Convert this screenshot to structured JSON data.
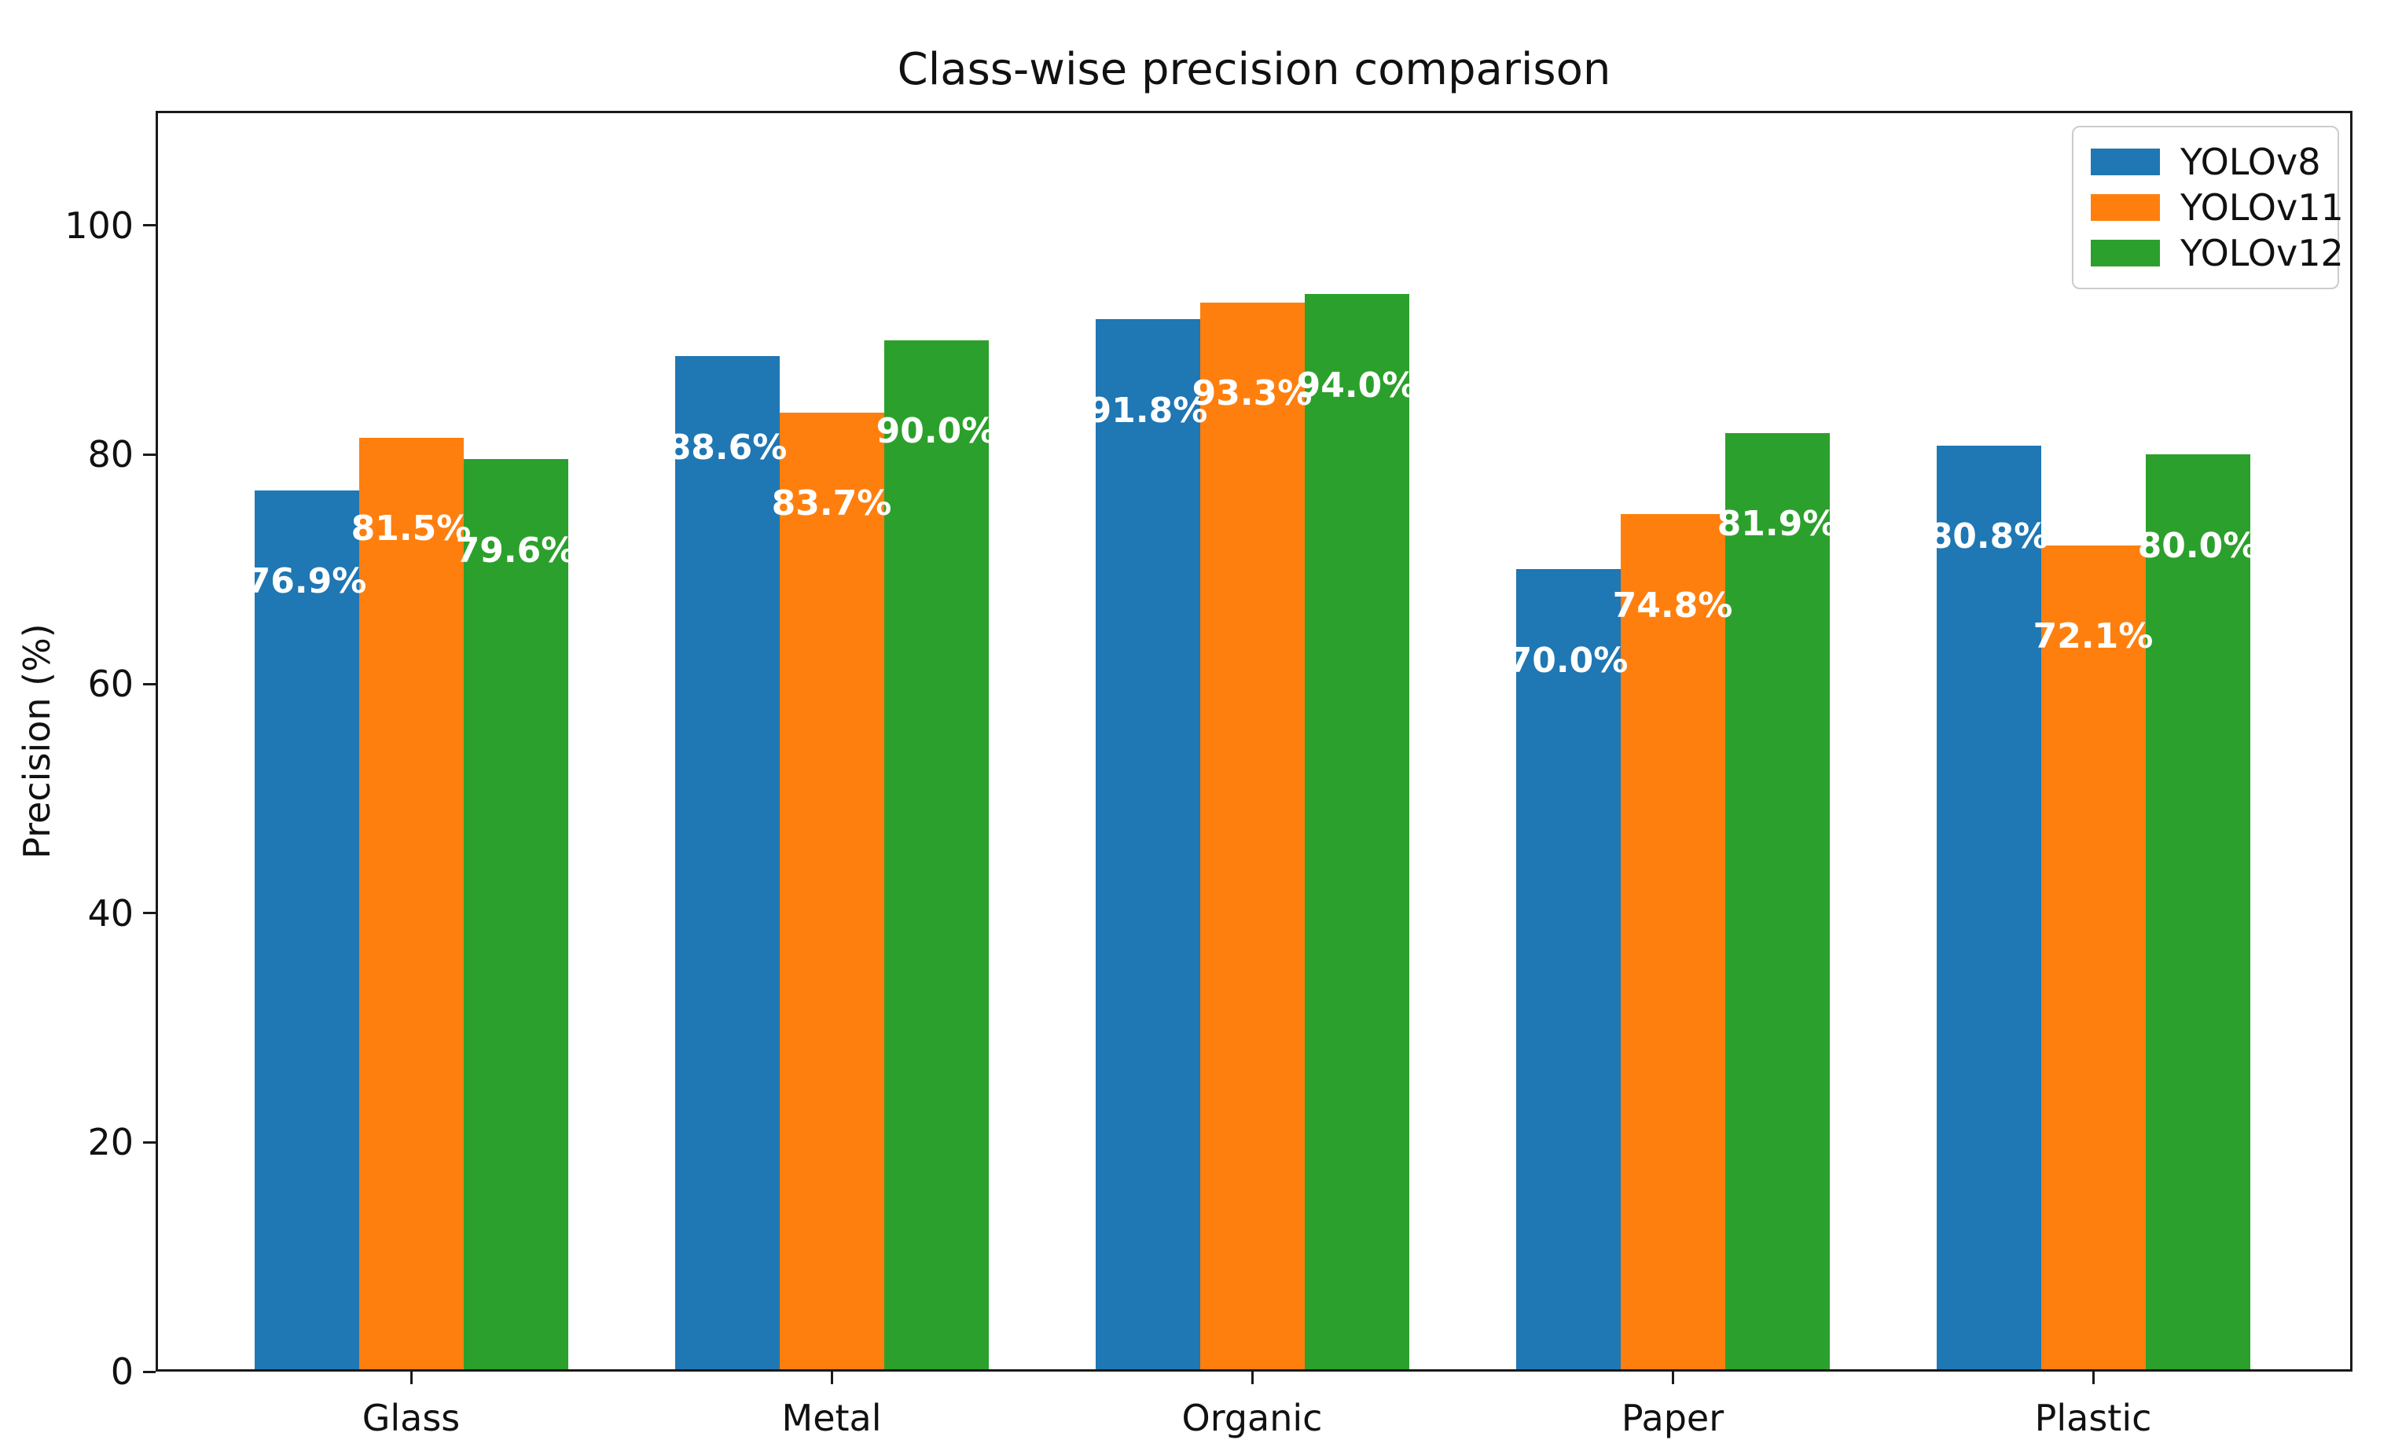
{
  "figure": {
    "background": "#ffffff",
    "axis_color": "#1a1a1a",
    "text_color": "#111111"
  },
  "chart_data": {
    "type": "bar",
    "title": "Class-wise precision comparison",
    "ylabel": "Precision (%)",
    "xlabel": "",
    "categories": [
      "Glass",
      "Metal",
      "Organic",
      "Paper",
      "Plastic"
    ],
    "series": [
      {
        "name": "YOLOv8",
        "color": "#1f77b4",
        "values": [
          76.9,
          88.6,
          91.8,
          70.0,
          80.8
        ],
        "labels": [
          "76.9%",
          "88.6%",
          "91.8%",
          "70.0%",
          "80.8%"
        ]
      },
      {
        "name": "YOLOv11",
        "color": "#ff7f0e",
        "values": [
          81.5,
          83.7,
          93.3,
          74.8,
          72.1
        ],
        "labels": [
          "81.5%",
          "83.7%",
          "93.3%",
          "74.8%",
          "72.1%"
        ]
      },
      {
        "name": "YOLOv12",
        "color": "#2ca02c",
        "values": [
          79.6,
          90.0,
          94.0,
          81.9,
          80.0
        ],
        "labels": [
          "79.6%",
          "90.0%",
          "94.0%",
          "81.9%",
          "80.0%"
        ]
      }
    ],
    "ylim": [
      0,
      110
    ],
    "yticks": [
      0,
      20,
      40,
      60,
      80,
      100
    ],
    "grid": false,
    "legend_position": "upper right",
    "bar_label_color": "#ffffff"
  }
}
